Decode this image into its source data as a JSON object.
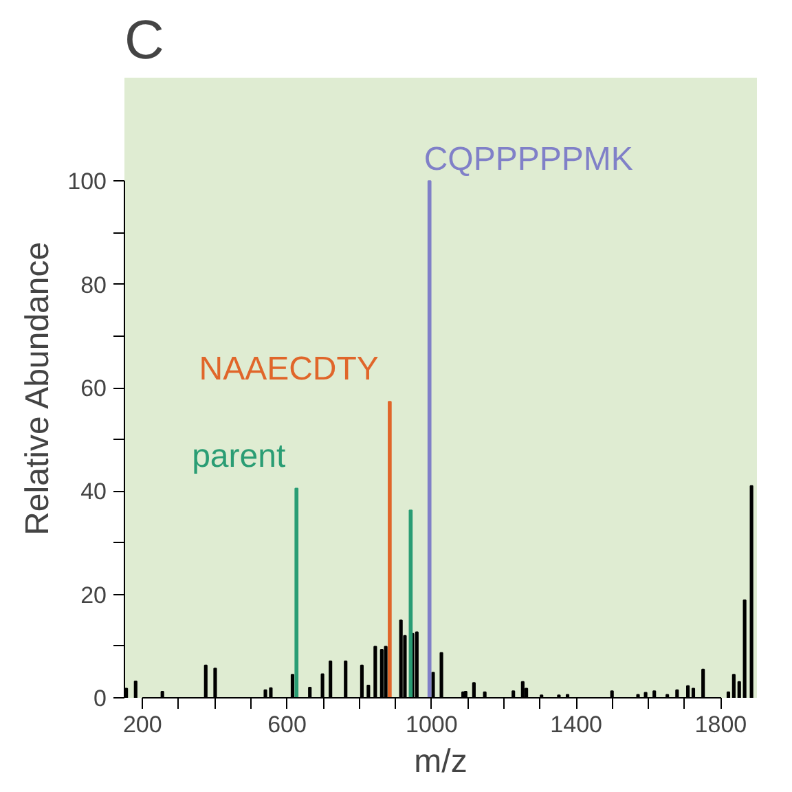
{
  "chart_data": {
    "type": "bar",
    "title": "C",
    "xlabel": "m/z",
    "ylabel": "Relative Abundance",
    "xlim": [
      150,
      1900
    ],
    "ylim": [
      0,
      120
    ],
    "xticks": [
      200,
      {
        "value": 300,
        "label": null
      },
      {
        "value": 400,
        "label": null
      },
      {
        "value": 500,
        "label": null
      },
      600,
      {
        "value": 700,
        "label": null
      },
      {
        "value": 800,
        "label": null
      },
      {
        "value": 900,
        "label": null
      },
      1000,
      {
        "value": 1100,
        "label": null
      },
      {
        "value": 1200,
        "label": null
      },
      {
        "value": 1300,
        "label": null
      },
      1400,
      {
        "value": 1500,
        "label": null
      },
      {
        "value": 1600,
        "label": null
      },
      {
        "value": 1700,
        "label": null
      },
      1800
    ],
    "yticks": [
      0,
      {
        "value": 10,
        "label": null
      },
      20,
      {
        "value": 30,
        "label": null
      },
      40,
      {
        "value": 50,
        "label": null
      },
      60,
      {
        "value": 70,
        "label": null
      },
      80,
      {
        "value": 90,
        "label": null
      },
      100
    ],
    "grid": false,
    "series": [
      {
        "color": "#000000",
        "x": [
          155,
          181,
          255,
          375,
          401,
          540,
          555,
          615,
          663,
          698,
          720,
          762,
          807,
          825,
          844,
          862,
          873,
          915,
          926,
          947,
          959,
          1004,
          1027,
          1087,
          1094,
          1117,
          1147,
          1226,
          1252,
          1262,
          1304,
          1352,
          1376,
          1499,
          1571,
          1592,
          1616,
          1652,
          1679,
          1709,
          1724,
          1751,
          1821,
          1836,
          1851,
          1866,
          1885
        ],
        "values": [
          1.8,
          3.2,
          1.2,
          6.3,
          5.7,
          1.5,
          1.9,
          4.5,
          2,
          4.6,
          7.1,
          7.1,
          6.3,
          2.4,
          9.9,
          9.3,
          9.9,
          15,
          12,
          12.4,
          12.7,
          4.9,
          8.7,
          1.1,
          1.2,
          2.9,
          1.1,
          1.3,
          3.1,
          1.8,
          0.5,
          0.5,
          0.6,
          1.3,
          0.6,
          1,
          1.3,
          0.6,
          1.5,
          2.3,
          1.8,
          5.5,
          1.1,
          4.5,
          3.1,
          18.9,
          41
        ]
      },
      {
        "name": "parent",
        "color": "#2a9d74",
        "x": [
          626,
          942
        ],
        "values": [
          40.5,
          36.3
        ]
      },
      {
        "name": "NAAECDTY",
        "color": "#e0662a",
        "x": [
          884
        ],
        "values": [
          57.3
        ]
      },
      {
        "name": "CQPPPPPMK",
        "color": "#8080c8",
        "x": [
          994
        ],
        "values": [
          100
        ]
      }
    ]
  }
}
